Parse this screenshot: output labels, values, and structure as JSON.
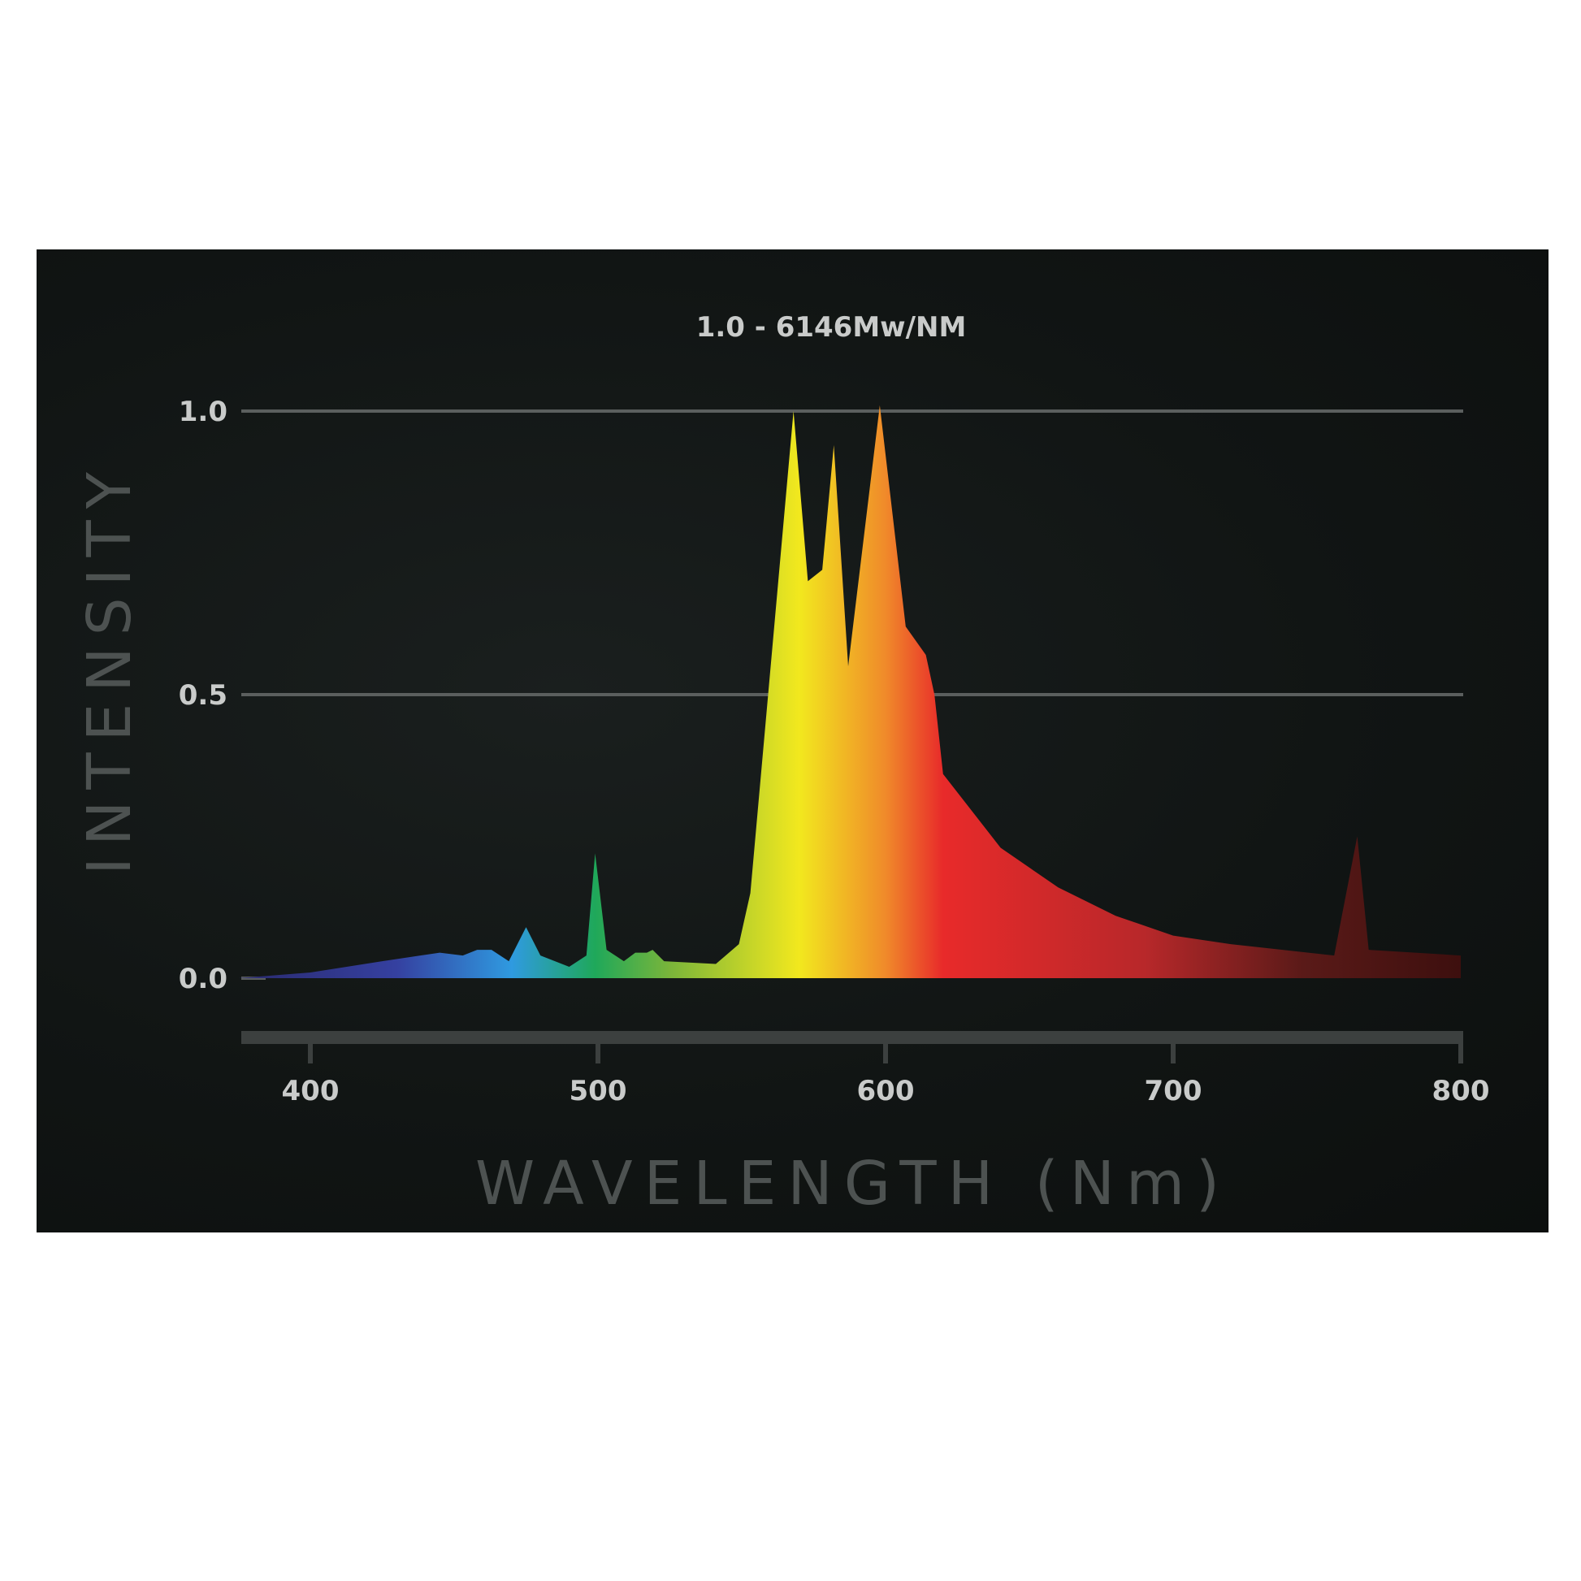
{
  "chart_data": {
    "type": "area",
    "title": "1.0 - 6146Mw/NM",
    "xlabel": "WAVELENGTH (Nm)",
    "ylabel": "INTENSITY",
    "xlim": [
      375,
      800
    ],
    "ylim": [
      0.0,
      1.0
    ],
    "x_ticks": [
      400,
      500,
      600,
      700,
      800
    ],
    "y_ticks": [
      0.0,
      0.5,
      1.0
    ],
    "x_tick_labels": [
      "400",
      "500",
      "600",
      "700",
      "800"
    ],
    "y_tick_labels": [
      "0.0",
      "0.5",
      "1.0"
    ],
    "grid": true,
    "series": [
      {
        "points": [
          [
            375,
            0.0
          ],
          [
            400,
            0.01
          ],
          [
            425,
            0.03
          ],
          [
            445,
            0.045
          ],
          [
            453,
            0.04
          ],
          [
            458,
            0.05
          ],
          [
            463,
            0.05
          ],
          [
            469,
            0.03
          ],
          [
            475,
            0.09
          ],
          [
            480,
            0.04
          ],
          [
            490,
            0.02
          ],
          [
            496,
            0.04
          ],
          [
            499,
            0.22
          ],
          [
            503,
            0.05
          ],
          [
            509,
            0.03
          ],
          [
            513,
            0.045
          ],
          [
            517,
            0.045
          ],
          [
            519,
            0.05
          ],
          [
            523,
            0.03
          ],
          [
            541,
            0.025
          ],
          [
            549,
            0.06
          ],
          [
            553,
            0.15
          ],
          [
            568,
            1.0
          ],
          [
            573,
            0.7
          ],
          [
            578,
            0.72
          ],
          [
            582,
            0.94
          ],
          [
            587,
            0.55
          ],
          [
            598,
            1.01
          ],
          [
            607,
            0.62
          ],
          [
            614,
            0.57
          ],
          [
            617,
            0.5
          ],
          [
            620,
            0.36
          ],
          [
            640,
            0.23
          ],
          [
            660,
            0.16
          ],
          [
            680,
            0.11
          ],
          [
            700,
            0.075
          ],
          [
            720,
            0.06
          ],
          [
            756,
            0.04
          ],
          [
            764,
            0.25
          ],
          [
            768,
            0.05
          ],
          [
            800,
            0.04
          ]
        ]
      }
    ]
  },
  "colors": {
    "background": "#111514",
    "gridline": "#5b5f5e",
    "x_axis_bar": "#3c403f",
    "tick_label": "#c9cbca",
    "axis_title": "#4d5251",
    "spectrum_stops": [
      {
        "nm": 375,
        "color": "#2a2a6e"
      },
      {
        "nm": 430,
        "color": "#3540a0"
      },
      {
        "nm": 470,
        "color": "#2f9ae0"
      },
      {
        "nm": 499,
        "color": "#1fa85a"
      },
      {
        "nm": 525,
        "color": "#7ab53a"
      },
      {
        "nm": 570,
        "color": "#f2e81e"
      },
      {
        "nm": 600,
        "color": "#f08a2a"
      },
      {
        "nm": 620,
        "color": "#e82a2a"
      },
      {
        "nm": 690,
        "color": "#b8282a"
      },
      {
        "nm": 745,
        "color": "#5a1a18"
      },
      {
        "nm": 800,
        "color": "#3d0f0e"
      }
    ]
  }
}
